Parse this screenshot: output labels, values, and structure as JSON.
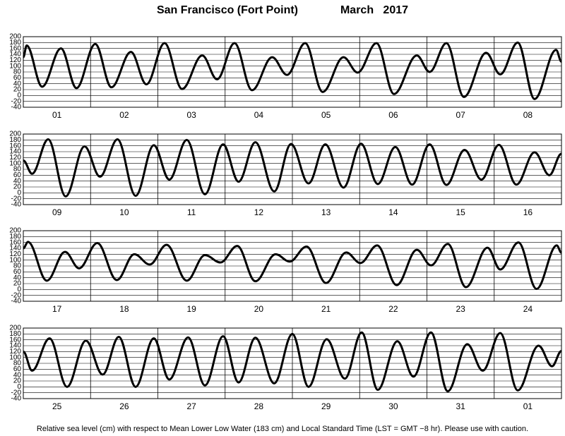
{
  "header": {
    "location": "San Francisco (Fort Point)",
    "period": "March   2017"
  },
  "footer": "Relative sea level (cm) with respect to Mean Lower Low Water (183 cm) and Local Standard Time (LST = GMT −8 hr). Please use with caution.",
  "chart_data": [
    {
      "type": "line",
      "xlim": [
        0,
        8
      ],
      "ylim": [
        -40,
        200
      ],
      "yticks": [
        200,
        180,
        160,
        140,
        120,
        100,
        80,
        60,
        40,
        20,
        0,
        -20,
        -40
      ],
      "grid": true,
      "xticks": [
        {
          "value": 0.5,
          "label": "01"
        },
        {
          "value": 1.5,
          "label": "02"
        },
        {
          "value": 2.5,
          "label": "03"
        },
        {
          "value": 3.5,
          "label": "04"
        },
        {
          "value": 4.5,
          "label": "05"
        },
        {
          "value": 5.5,
          "label": "06"
        },
        {
          "value": 6.5,
          "label": "07"
        },
        {
          "value": 7.5,
          "label": "08"
        }
      ],
      "x": [
        0,
        0.05,
        0.28,
        0.56,
        0.79,
        1.07,
        1.31,
        1.6,
        1.83,
        2.1,
        2.36,
        2.66,
        2.88,
        3.14,
        3.4,
        3.7,
        3.92,
        4.19,
        4.45,
        4.76,
        4.97,
        5.25,
        5.51,
        5.85,
        6.04,
        6.29,
        6.55,
        6.88,
        7.09,
        7.35,
        7.6,
        7.92,
        8
      ],
      "series": [
        {
          "color": "#000000",
          "values": [
            130,
            170,
            30,
            160,
            25,
            175,
            28,
            148,
            38,
            178,
            22,
            136,
            55,
            178,
            18,
            130,
            70,
            178,
            12,
            130,
            78,
            178,
            5,
            136,
            80,
            178,
            -5,
            145,
            72,
            180,
            -12,
            155,
            115
          ]
        }
      ]
    },
    {
      "type": "line",
      "xlim": [
        0,
        8
      ],
      "ylim": [
        -40,
        200
      ],
      "yticks": [
        200,
        180,
        160,
        140,
        120,
        100,
        80,
        60,
        40,
        20,
        0,
        -20,
        -40
      ],
      "grid": true,
      "xticks": [
        {
          "value": 0.5,
          "label": "09"
        },
        {
          "value": 1.5,
          "label": "10"
        },
        {
          "value": 2.5,
          "label": "11"
        },
        {
          "value": 3.5,
          "label": "12"
        },
        {
          "value": 4.5,
          "label": "13"
        },
        {
          "value": 5.5,
          "label": "14"
        },
        {
          "value": 6.5,
          "label": "15"
        },
        {
          "value": 7.5,
          "label": "16"
        }
      ],
      "x": [
        0,
        0.13,
        0.37,
        0.63,
        0.91,
        1.14,
        1.4,
        1.67,
        1.94,
        2.17,
        2.43,
        2.7,
        2.97,
        3.2,
        3.45,
        3.73,
        3.98,
        4.24,
        4.49,
        4.76,
        5.02,
        5.27,
        5.53,
        5.78,
        6.04,
        6.29,
        6.56,
        6.81,
        7.07,
        7.33,
        7.6,
        7.82,
        8
      ],
      "series": [
        {
          "color": "#000000",
          "values": [
            110,
            65,
            182,
            -12,
            158,
            55,
            182,
            -10,
            162,
            45,
            180,
            -5,
            165,
            38,
            172,
            5,
            166,
            32,
            165,
            18,
            167,
            30,
            156,
            28,
            165,
            27,
            146,
            45,
            163,
            28,
            138,
            60,
            133
          ]
        }
      ]
    },
    {
      "type": "line",
      "xlim": [
        0,
        8
      ],
      "ylim": [
        -40,
        200
      ],
      "yticks": [
        200,
        180,
        160,
        140,
        120,
        100,
        80,
        60,
        40,
        20,
        0,
        -20,
        -40
      ],
      "grid": true,
      "xticks": [
        {
          "value": 0.5,
          "label": "17"
        },
        {
          "value": 1.5,
          "label": "18"
        },
        {
          "value": 2.5,
          "label": "19"
        },
        {
          "value": 3.5,
          "label": "20"
        },
        {
          "value": 4.5,
          "label": "21"
        },
        {
          "value": 5.5,
          "label": "22"
        },
        {
          "value": 6.5,
          "label": "23"
        },
        {
          "value": 7.5,
          "label": "24"
        }
      ],
      "x": [
        0,
        0.07,
        0.35,
        0.62,
        0.83,
        1.1,
        1.39,
        1.65,
        1.88,
        2.13,
        2.43,
        2.7,
        2.93,
        3.18,
        3.45,
        3.75,
        3.96,
        4.21,
        4.5,
        4.8,
        5.01,
        5.26,
        5.55,
        5.85,
        6.06,
        6.31,
        6.58,
        6.9,
        7.09,
        7.36,
        7.63,
        7.93,
        8
      ],
      "series": [
        {
          "color": "#000000",
          "values": [
            140,
            162,
            30,
            128,
            72,
            158,
            32,
            120,
            85,
            152,
            30,
            117,
            92,
            148,
            28,
            120,
            95,
            146,
            22,
            126,
            90,
            150,
            15,
            135,
            82,
            155,
            8,
            142,
            68,
            160,
            2,
            150,
            125
          ]
        }
      ]
    },
    {
      "type": "line",
      "xlim": [
        0,
        8
      ],
      "ylim": [
        -40,
        200
      ],
      "yticks": [
        200,
        180,
        160,
        140,
        120,
        100,
        80,
        60,
        40,
        20,
        0,
        -20,
        -40
      ],
      "grid": true,
      "xticks": [
        {
          "value": 0.5,
          "label": "25"
        },
        {
          "value": 1.5,
          "label": "26"
        },
        {
          "value": 2.5,
          "label": "27"
        },
        {
          "value": 3.5,
          "label": "28"
        },
        {
          "value": 4.5,
          "label": "29"
        },
        {
          "value": 5.5,
          "label": "30"
        },
        {
          "value": 6.5,
          "label": "31"
        },
        {
          "value": 7.5,
          "label": "01"
        }
      ],
      "x": [
        0,
        0.13,
        0.39,
        0.65,
        0.93,
        1.18,
        1.42,
        1.67,
        1.94,
        2.17,
        2.45,
        2.7,
        2.97,
        3.2,
        3.45,
        3.73,
        4,
        4.24,
        4.51,
        4.78,
        5.03,
        5.27,
        5.56,
        5.8,
        6.06,
        6.31,
        6.6,
        6.83,
        7.09,
        7.35,
        7.66,
        7.86,
        8
      ],
      "series": [
        {
          "color": "#000000",
          "values": [
            120,
            55,
            165,
            0,
            157,
            42,
            170,
            0,
            165,
            25,
            168,
            5,
            172,
            15,
            167,
            12,
            180,
            0,
            162,
            28,
            185,
            -10,
            155,
            35,
            185,
            -15,
            145,
            55,
            183,
            -12,
            140,
            70,
            122
          ]
        }
      ]
    }
  ]
}
